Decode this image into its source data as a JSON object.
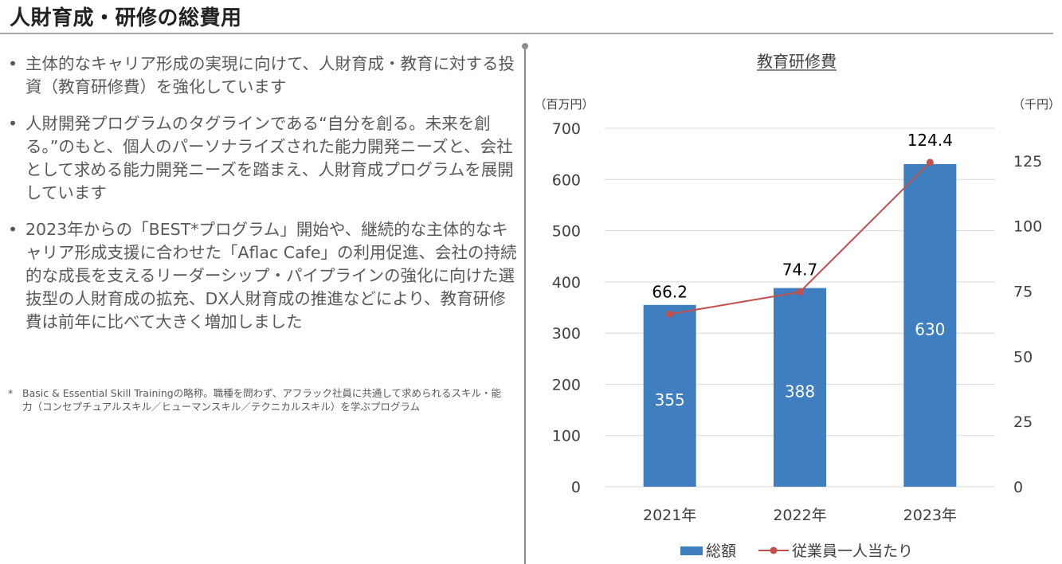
{
  "page": {
    "title": "人財育成・研修の総費用"
  },
  "bullets": [
    {
      "marker": "•",
      "text": "主体的なキャリア形成の実現に向けて、人財育成・教育に対する投資（教育研修費）を強化しています"
    },
    {
      "marker": "•",
      "text": "人財開発プログラムのタグラインである“自分を創る。未来を創る。”のもと、個人のパーソナライズされた能力開発ニーズと、会社として求める能力開発ニーズを踏まえ、人財育成プログラムを展開しています"
    },
    {
      "marker": "•",
      "text": "2023年からの「BEST*プログラム」開始や、継続的な主体的なキャリア形成支援に合わせた「Aflac Cafe」の利用促進、会社の持続的な成長を支えるリーダーシップ・パイプラインの強化に向けた選抜型の人財育成の拡充、DX人財育成の推進などにより、教育研修費は前年に比べて大きく増加しました"
    }
  ],
  "footnote": {
    "marker": "*",
    "text": "Basic & Essential Skill Trainingの略称。職種を問わず、アフラック社員に共通して求められるスキル・能力（コンセプチュアルスキル／ヒューマンスキル／テクニカルスキル）を学ぶプログラム"
  },
  "chart_data": {
    "type": "bar",
    "title": "教育研修費",
    "categories": [
      "2021年",
      "2022年",
      "2023年"
    ],
    "left_axis_unit": "（百万円）",
    "right_axis_unit": "（千円）",
    "left_ylim": [
      0,
      700
    ],
    "left_ticks": [
      0,
      100,
      200,
      300,
      400,
      500,
      600,
      700
    ],
    "right_ylim": [
      0,
      137.5
    ],
    "right_ticks": [
      0,
      25,
      50,
      75,
      100,
      125
    ],
    "grid": true,
    "legend_position": "bottom",
    "series": [
      {
        "name": "総額",
        "type": "bar",
        "axis": "left",
        "color": "#3f7ebf",
        "label_color": "#ffffff",
        "values": [
          355,
          388,
          630
        ]
      },
      {
        "name": "従業員一人当たり",
        "type": "line",
        "axis": "right",
        "color": "#c0504d",
        "label_color": "#000000",
        "values": [
          66.2,
          74.7,
          124.4
        ]
      }
    ]
  }
}
